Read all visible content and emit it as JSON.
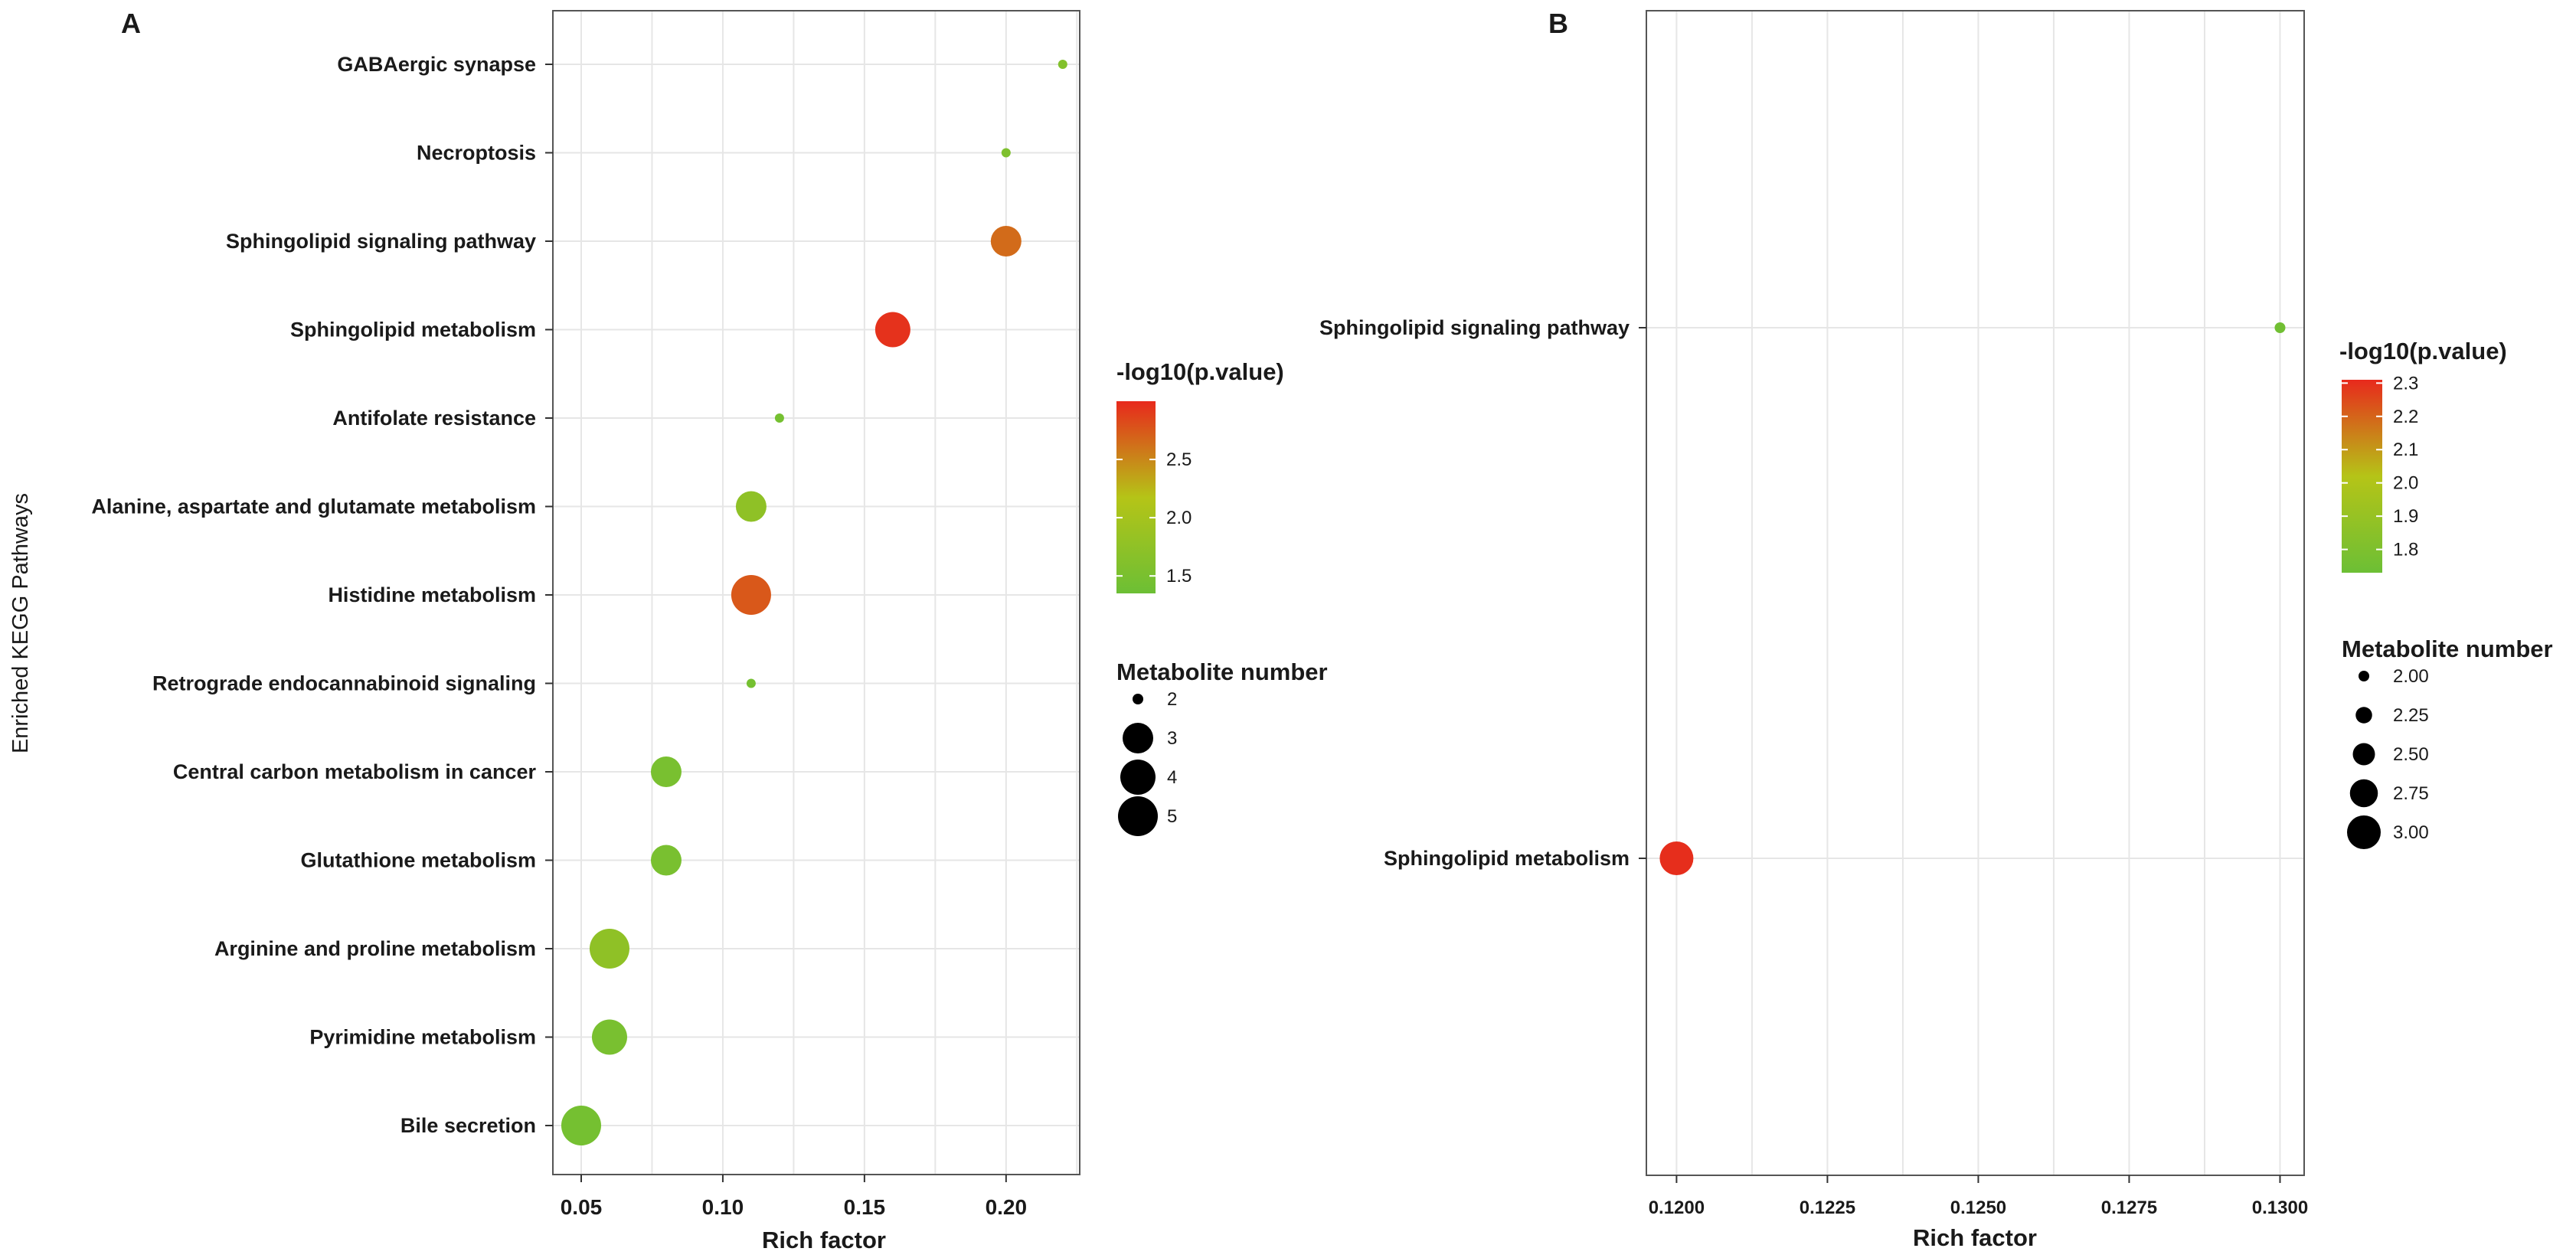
{
  "chart_data": [
    {
      "type": "scatter",
      "panel_label": "A",
      "xlabel": "Rich factor",
      "ylabel": "Enriched KEGG Pathways",
      "xlim": [
        0.04,
        0.226
      ],
      "xticks": [
        0.05,
        0.1,
        0.15,
        0.2
      ],
      "xtick_labels": [
        "0.05",
        "0.10",
        "0.15",
        "0.20"
      ],
      "grid": true,
      "categories": [
        "GABAergic synapse",
        "Necroptosis",
        "Sphingolipid signaling pathway",
        "Sphingolipid metabolism",
        "Antifolate resistance",
        "Alanine, aspartate and glutamate metabolism",
        "Histidine metabolism",
        "Retrograde endocannabinoid signaling",
        "Central carbon metabolism in cancer",
        "Glutathione metabolism",
        "Arginine and proline metabolism",
        "Pyrimidine metabolism",
        "Bile secretion"
      ],
      "points": [
        {
          "pathway": "GABAergic synapse",
          "rich_factor": 0.22,
          "metabolite_number": 1,
          "neg_log10_p": 1.6
        },
        {
          "pathway": "Necroptosis",
          "rich_factor": 0.2,
          "metabolite_number": 1,
          "neg_log10_p": 1.55
        },
        {
          "pathway": "Sphingolipid signaling pathway",
          "rich_factor": 0.2,
          "metabolite_number": 3,
          "neg_log10_p": 2.65
        },
        {
          "pathway": "Sphingolipid metabolism",
          "rich_factor": 0.16,
          "metabolite_number": 4,
          "neg_log10_p": 2.95
        },
        {
          "pathway": "Antifolate resistance",
          "rich_factor": 0.12,
          "metabolite_number": 1,
          "neg_log10_p": 1.45
        },
        {
          "pathway": "Alanine, aspartate and glutamate metabolism",
          "rich_factor": 0.11,
          "metabolite_number": 3,
          "neg_log10_p": 1.75
        },
        {
          "pathway": "Histidine metabolism",
          "rich_factor": 0.11,
          "metabolite_number": 5,
          "neg_log10_p": 2.75
        },
        {
          "pathway": "Retrograde endocannabinoid signaling",
          "rich_factor": 0.11,
          "metabolite_number": 1,
          "neg_log10_p": 1.45
        },
        {
          "pathway": "Central carbon metabolism in cancer",
          "rich_factor": 0.08,
          "metabolite_number": 3,
          "neg_log10_p": 1.5
        },
        {
          "pathway": "Glutathione metabolism",
          "rich_factor": 0.08,
          "metabolite_number": 3,
          "neg_log10_p": 1.5
        },
        {
          "pathway": "Arginine and proline metabolism",
          "rich_factor": 0.06,
          "metabolite_number": 5,
          "neg_log10_p": 1.75
        },
        {
          "pathway": "Pyrimidine metabolism",
          "rich_factor": 0.06,
          "metabolite_number": 4,
          "neg_log10_p": 1.5
        },
        {
          "pathway": "Bile secretion",
          "rich_factor": 0.05,
          "metabolite_number": 5,
          "neg_log10_p": 1.45
        }
      ],
      "color_legend": {
        "title": "-log10(p.value)",
        "min": 1.35,
        "max": 3.0,
        "ticks": [
          1.5,
          2.0,
          2.5
        ],
        "tick_labels": [
          "1.5",
          "2.0",
          "2.5"
        ]
      },
      "size_legend": {
        "title": "Metabolite number",
        "values": [
          2,
          3,
          4,
          5
        ],
        "labels": [
          "2",
          "3",
          "4",
          "5"
        ]
      }
    },
    {
      "type": "scatter",
      "panel_label": "B",
      "xlabel": "Rich factor",
      "ylabel": "",
      "xlim": [
        0.1195,
        0.1304
      ],
      "xticks": [
        0.12,
        0.1225,
        0.125,
        0.1275,
        0.13
      ],
      "xtick_labels": [
        "0.1200",
        "0.1225",
        "0.1250",
        "0.1275",
        "0.1300"
      ],
      "grid": true,
      "categories": [
        "Sphingolipid signaling pathway",
        "Sphingolipid metabolism"
      ],
      "points": [
        {
          "pathway": "Sphingolipid signaling pathway",
          "rich_factor": 0.13,
          "metabolite_number": 2,
          "neg_log10_p": 1.75
        },
        {
          "pathway": "Sphingolipid metabolism",
          "rich_factor": 0.12,
          "metabolite_number": 3,
          "neg_log10_p": 2.3
        }
      ],
      "color_legend": {
        "title": "-log10(p.value)",
        "min": 1.73,
        "max": 2.31,
        "ticks": [
          1.8,
          1.9,
          2.0,
          2.1,
          2.2,
          2.3
        ],
        "tick_labels": [
          "1.8",
          "1.9",
          "2.0",
          "2.1",
          "2.2",
          "2.3"
        ]
      },
      "size_legend": {
        "title": "Metabolite number",
        "values": [
          2.0,
          2.25,
          2.5,
          2.75,
          3.0
        ],
        "labels": [
          "2.00",
          "2.25",
          "2.50",
          "2.75",
          "3.00"
        ]
      }
    }
  ],
  "colors": {
    "low": "#6cbf35",
    "mid": "#b5c417",
    "high": "#e8291c",
    "grid": "#e6e6e6",
    "frame": "#555555"
  }
}
